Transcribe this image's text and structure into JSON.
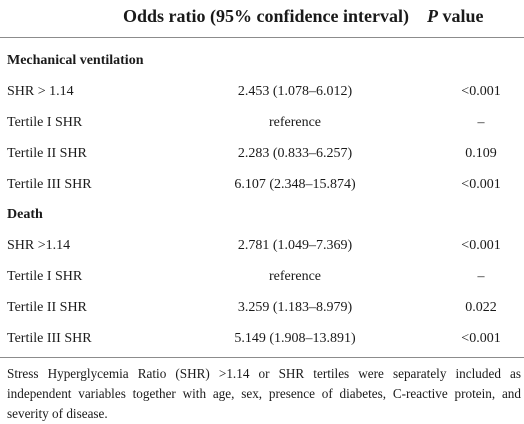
{
  "table": {
    "headers": {
      "odds_ratio": "Odds ratio (95% confidence interval)",
      "p_label": "P",
      "p_suffix": " value"
    },
    "sections": [
      {
        "title": "Mechanical ventilation",
        "rows": [
          {
            "label": "SHR > 1.14",
            "or": "2.453 (1.078–6.012)",
            "p": "<0.001"
          },
          {
            "label": "Tertile I SHR",
            "or": "reference",
            "p": "–"
          },
          {
            "label": "Tertile II SHR",
            "or": "2.283 (0.833–6.257)",
            "p": "0.109"
          },
          {
            "label": "Tertile III SHR",
            "or": "6.107 (2.348–15.874)",
            "p": "<0.001"
          }
        ]
      },
      {
        "title": "Death",
        "rows": [
          {
            "label": "SHR >1.14",
            "or": "2.781 (1.049–7.369)",
            "p": "<0.001"
          },
          {
            "label": "Tertile I SHR",
            "or": "reference",
            "p": "–"
          },
          {
            "label": "Tertile II SHR",
            "or": "3.259 (1.183–8.979)",
            "p": "0.022"
          },
          {
            "label": "Tertile III SHR",
            "or": "5.149 (1.908–13.891)",
            "p": "<0.001"
          }
        ]
      }
    ],
    "footnote": "Stress Hyperglycemia Ratio (SHR) >1.14 or SHR tertiles were separately included as independent variables together with age, sex, presence of diabetes, C-reactive protein, and severity of disease."
  }
}
